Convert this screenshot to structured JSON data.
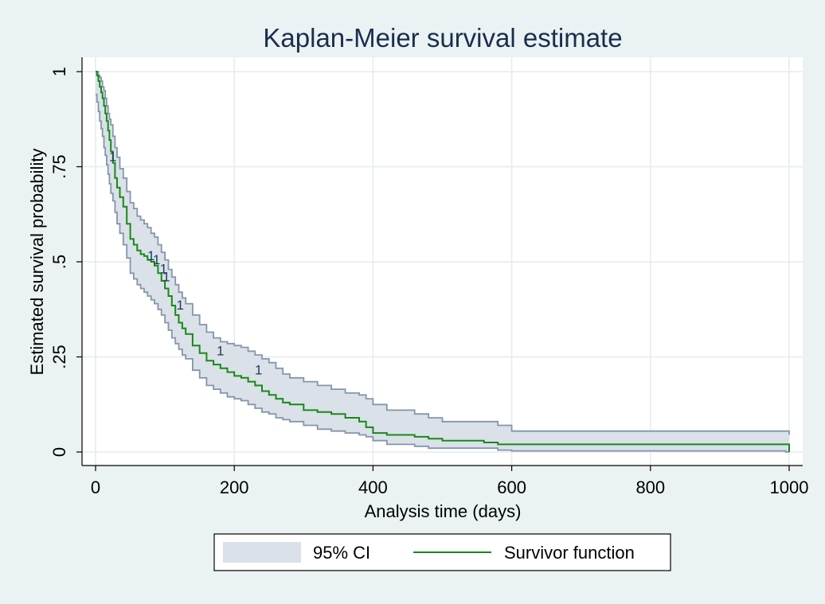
{
  "chart_data": {
    "type": "line",
    "title": "Kaplan-Meier survival estimate",
    "xlabel": "Analysis time (days)",
    "ylabel": "Estimated survival probability",
    "xlim": [
      -10,
      1005
    ],
    "ylim": [
      -0.025,
      1.035
    ],
    "x_ticks": [
      0,
      200,
      400,
      600,
      800,
      1000
    ],
    "x_tick_labels": [
      "0",
      "200",
      "400",
      "600",
      "800",
      "1000"
    ],
    "y_ticks": [
      0,
      0.25,
      0.5,
      0.75,
      1
    ],
    "y_tick_labels": [
      "0",
      ".25",
      ".5",
      ".75",
      "1"
    ],
    "grid": true,
    "legend_position": "bottom",
    "legend": [
      {
        "label": "95% CI",
        "kind": "band"
      },
      {
        "label": "Survivor function",
        "kind": "line"
      }
    ],
    "colors": {
      "background": "#eaf2f3",
      "plot_background": "#ffffff",
      "grid": "#e3ecee",
      "ci_fill": "#dbe1e8",
      "ci_edge": "#8496ab",
      "survivor_line": "#18891a",
      "censor_marks": "#1a3a5c",
      "text": "#000000",
      "title": "#1a2e4d"
    },
    "series": [
      {
        "name": "Survivor function",
        "x": [
          0,
          2,
          4,
          6,
          8,
          10,
          12,
          14,
          16,
          18,
          20,
          22,
          25,
          28,
          31,
          35,
          40,
          45,
          50,
          55,
          60,
          65,
          70,
          75,
          80,
          85,
          90,
          95,
          100,
          105,
          110,
          115,
          120,
          125,
          130,
          140,
          150,
          160,
          170,
          180,
          190,
          200,
          210,
          220,
          230,
          240,
          250,
          260,
          270,
          280,
          300,
          320,
          340,
          360,
          380,
          390,
          400,
          420,
          460,
          480,
          500,
          560,
          580,
          600,
          700,
          800,
          900,
          1000
        ],
        "y": [
          1.0,
          0.99,
          0.975,
          0.96,
          0.945,
          0.93,
          0.91,
          0.89,
          0.87,
          0.845,
          0.82,
          0.79,
          0.76,
          0.72,
          0.695,
          0.67,
          0.645,
          0.6,
          0.56,
          0.545,
          0.53,
          0.52,
          0.515,
          0.505,
          0.5,
          0.49,
          0.47,
          0.45,
          0.43,
          0.41,
          0.385,
          0.36,
          0.34,
          0.325,
          0.31,
          0.28,
          0.26,
          0.24,
          0.23,
          0.22,
          0.21,
          0.2,
          0.195,
          0.185,
          0.175,
          0.16,
          0.15,
          0.14,
          0.13,
          0.125,
          0.11,
          0.105,
          0.1,
          0.09,
          0.08,
          0.065,
          0.05,
          0.045,
          0.04,
          0.035,
          0.03,
          0.025,
          0.02,
          0.02,
          0.02,
          0.02,
          0.02,
          0.0
        ],
        "censored": [
          {
            "x": 25,
            "y": 0.76
          },
          {
            "x": 80,
            "y": 0.5
          },
          {
            "x": 88,
            "y": 0.49
          },
          {
            "x": 98,
            "y": 0.465
          },
          {
            "x": 102,
            "y": 0.445
          },
          {
            "x": 122,
            "y": 0.37
          },
          {
            "x": 180,
            "y": 0.25
          },
          {
            "x": 235,
            "y": 0.2
          }
        ]
      },
      {
        "name": "95% CI",
        "x": [
          0,
          2,
          4,
          6,
          8,
          10,
          12,
          14,
          16,
          18,
          20,
          22,
          25,
          28,
          31,
          35,
          40,
          45,
          50,
          55,
          60,
          65,
          70,
          75,
          80,
          85,
          90,
          95,
          100,
          105,
          110,
          115,
          120,
          125,
          130,
          140,
          150,
          160,
          170,
          180,
          190,
          200,
          210,
          220,
          230,
          240,
          250,
          260,
          270,
          280,
          300,
          320,
          340,
          360,
          380,
          390,
          400,
          420,
          460,
          480,
          500,
          560,
          580,
          600,
          700,
          800,
          900,
          995,
          1000
        ],
        "upper": [
          1.0,
          1.0,
          0.99,
          0.985,
          0.975,
          0.96,
          0.95,
          0.93,
          0.91,
          0.89,
          0.875,
          0.86,
          0.83,
          0.8,
          0.775,
          0.745,
          0.72,
          0.685,
          0.655,
          0.64,
          0.62,
          0.61,
          0.6,
          0.59,
          0.575,
          0.565,
          0.545,
          0.525,
          0.505,
          0.48,
          0.46,
          0.44,
          0.42,
          0.405,
          0.39,
          0.36,
          0.335,
          0.315,
          0.3,
          0.29,
          0.285,
          0.28,
          0.275,
          0.265,
          0.255,
          0.245,
          0.235,
          0.22,
          0.205,
          0.195,
          0.185,
          0.175,
          0.165,
          0.155,
          0.15,
          0.14,
          0.125,
          0.11,
          0.1,
          0.09,
          0.08,
          0.08,
          0.07,
          0.055,
          0.055,
          0.055,
          0.055,
          0.055,
          0.045
        ],
        "lower": [
          0.94,
          0.92,
          0.895,
          0.87,
          0.85,
          0.83,
          0.8,
          0.78,
          0.755,
          0.73,
          0.705,
          0.68,
          0.66,
          0.63,
          0.6,
          0.575,
          0.545,
          0.51,
          0.47,
          0.455,
          0.44,
          0.43,
          0.42,
          0.41,
          0.4,
          0.39,
          0.375,
          0.36,
          0.34,
          0.32,
          0.3,
          0.285,
          0.27,
          0.255,
          0.245,
          0.215,
          0.195,
          0.175,
          0.165,
          0.155,
          0.145,
          0.14,
          0.135,
          0.125,
          0.115,
          0.105,
          0.1,
          0.09,
          0.085,
          0.08,
          0.07,
          0.06,
          0.055,
          0.05,
          0.045,
          0.04,
          0.03,
          0.02,
          0.015,
          0.01,
          0.01,
          0.01,
          0.005,
          0.003,
          0.003,
          0.003,
          0.003,
          0.0,
          0.0
        ]
      }
    ]
  }
}
